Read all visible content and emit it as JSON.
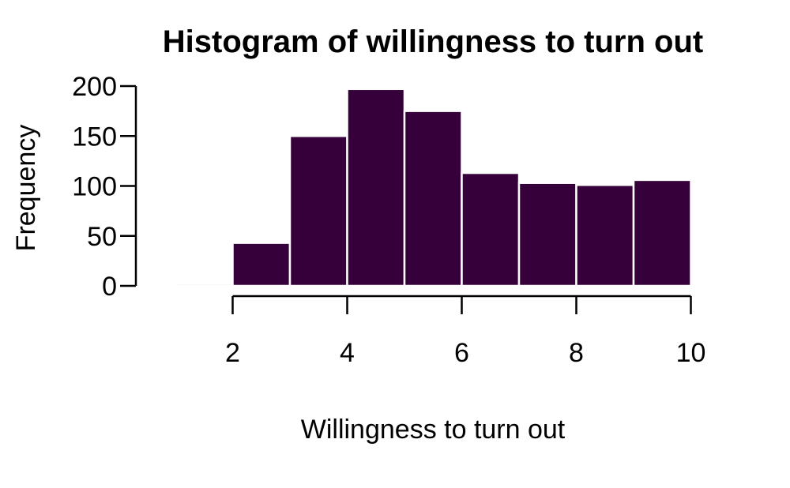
{
  "chart_data": {
    "type": "bar",
    "title": "Histogram of willingness to turn out",
    "xlabel": "Willingness to turn out",
    "ylabel": "Frequency",
    "bins": [
      {
        "start": 1,
        "end": 2,
        "value": 2
      },
      {
        "start": 2,
        "end": 3,
        "value": 43
      },
      {
        "start": 3,
        "end": 4,
        "value": 150
      },
      {
        "start": 4,
        "end": 5,
        "value": 197
      },
      {
        "start": 5,
        "end": 6,
        "value": 175
      },
      {
        "start": 6,
        "end": 7,
        "value": 113
      },
      {
        "start": 7,
        "end": 8,
        "value": 103
      },
      {
        "start": 8,
        "end": 9,
        "value": 101
      },
      {
        "start": 9,
        "end": 10,
        "value": 106
      }
    ],
    "x_ticks": [
      2,
      4,
      6,
      8,
      10
    ],
    "x_tick_labels": [
      "2",
      "4",
      "6",
      "8",
      "10"
    ],
    "y_ticks": [
      0,
      50,
      100,
      150,
      200
    ],
    "y_tick_labels": [
      "0",
      "50",
      "100",
      "150",
      "200"
    ],
    "xlim": [
      1,
      10
    ],
    "ylim": [
      0,
      200
    ],
    "bar_color": "#36003a",
    "bar_edge_color": "#ffffff",
    "grid": false,
    "legend": "none"
  }
}
